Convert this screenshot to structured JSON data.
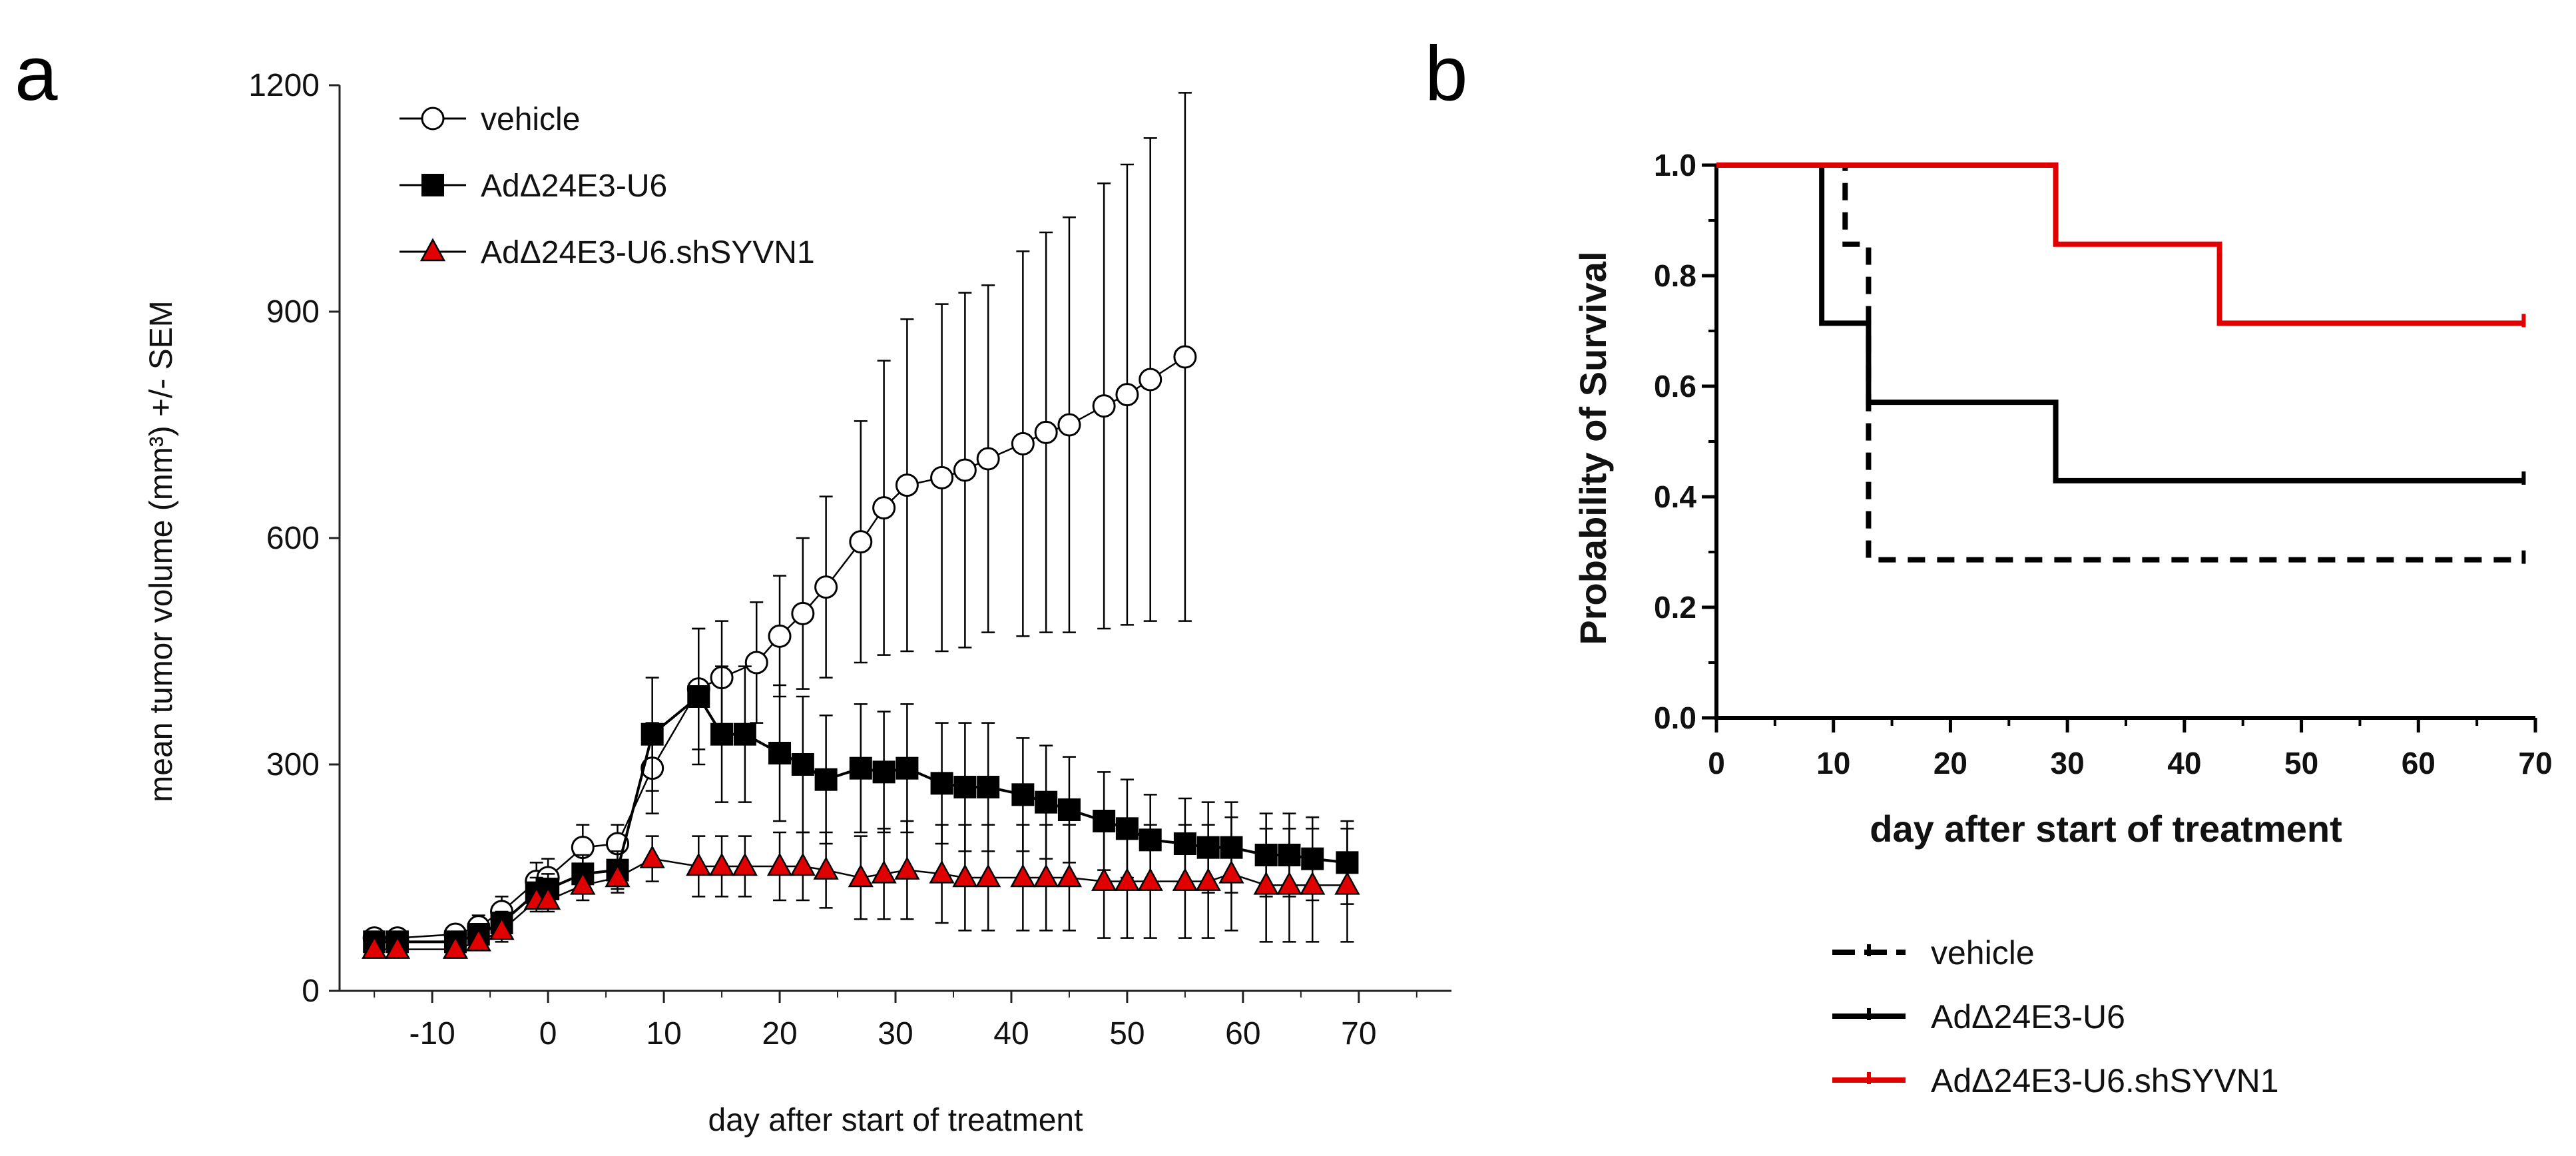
{
  "panels": {
    "a": {
      "letter": "a"
    },
    "b": {
      "letter": "b"
    }
  },
  "chart_data": [
    {
      "panel": "a",
      "type": "line",
      "title": "",
      "xlabel": "day after start of treatment",
      "ylabel": "mean tumor volume (mm³) +/- SEM",
      "xlim": [
        -18,
        78
      ],
      "ylim": [
        0,
        1200
      ],
      "xticks": [
        -10,
        0,
        10,
        20,
        30,
        40,
        50,
        60,
        70
      ],
      "yticks": [
        0,
        300,
        600,
        900,
        1200
      ],
      "grid": false,
      "legend_position": "top-left",
      "series": [
        {
          "name": "vehicle",
          "marker": "circle-open",
          "color": "#000000",
          "fill": "#ffffff",
          "x": [
            -15,
            -13,
            -8,
            -6,
            -4,
            -1,
            0,
            3,
            6,
            9,
            13,
            15,
            18,
            20,
            22,
            24,
            27,
            29,
            31,
            34,
            36,
            38,
            41,
            43,
            45,
            48,
            50,
            52,
            55
          ],
          "y": [
            70,
            70,
            75,
            85,
            105,
            145,
            150,
            190,
            195,
            295,
            400,
            415,
            435,
            470,
            500,
            535,
            595,
            640,
            670,
            680,
            690,
            705,
            725,
            740,
            750,
            775,
            790,
            810,
            840
          ],
          "sem": [
            10,
            10,
            10,
            15,
            20,
            25,
            25,
            30,
            25,
            60,
            80,
            75,
            80,
            80,
            100,
            120,
            160,
            195,
            220,
            230,
            235,
            230,
            255,
            265,
            275,
            295,
            305,
            320,
            350
          ]
        },
        {
          "name": "AdΔ24E3-U6",
          "marker": "square",
          "color": "#000000",
          "fill": "#000000",
          "x": [
            -15,
            -13,
            -8,
            -6,
            -4,
            -1,
            0,
            3,
            6,
            9,
            13,
            15,
            17,
            20,
            22,
            24,
            27,
            29,
            31,
            34,
            36,
            38,
            41,
            43,
            45,
            48,
            50,
            52,
            55,
            57,
            59,
            62,
            64,
            66,
            69
          ],
          "y": [
            65,
            65,
            65,
            75,
            90,
            130,
            135,
            155,
            160,
            340,
            390,
            340,
            340,
            315,
            300,
            280,
            295,
            290,
            295,
            275,
            270,
            270,
            260,
            250,
            240,
            225,
            215,
            200,
            195,
            190,
            190,
            180,
            180,
            175,
            170
          ],
          "sem": [
            10,
            10,
            10,
            10,
            15,
            20,
            20,
            25,
            25,
            75,
            90,
            90,
            90,
            90,
            90,
            85,
            85,
            80,
            85,
            80,
            85,
            85,
            75,
            75,
            70,
            65,
            65,
            60,
            60,
            60,
            60,
            55,
            55,
            55,
            55
          ]
        },
        {
          "name": "AdΔ24E3-U6.shSYVN1",
          "marker": "triangle",
          "color": "#000000",
          "fill": "#e00000",
          "x": [
            -15,
            -13,
            -8,
            -6,
            -4,
            -1,
            0,
            3,
            6,
            9,
            13,
            15,
            17,
            20,
            22,
            24,
            27,
            29,
            31,
            34,
            36,
            38,
            41,
            43,
            45,
            48,
            50,
            52,
            55,
            57,
            59,
            62,
            64,
            66,
            69
          ],
          "y": [
            55,
            55,
            55,
            65,
            80,
            120,
            120,
            140,
            150,
            175,
            165,
            165,
            165,
            165,
            165,
            160,
            150,
            155,
            160,
            155,
            150,
            150,
            150,
            150,
            150,
            145,
            145,
            145,
            145,
            145,
            155,
            140,
            140,
            140,
            140
          ],
          "sem": [
            5,
            5,
            5,
            10,
            15,
            15,
            15,
            20,
            20,
            30,
            40,
            40,
            40,
            45,
            45,
            50,
            55,
            60,
            65,
            65,
            70,
            70,
            70,
            70,
            70,
            75,
            75,
            75,
            75,
            75,
            75,
            75,
            75,
            75,
            75
          ]
        }
      ]
    },
    {
      "panel": "b",
      "type": "line",
      "title": "",
      "xlabel": "day after start of treatment",
      "ylabel": "Probability of Survival",
      "xlim": [
        0,
        70
      ],
      "ylim": [
        0,
        1.0
      ],
      "xticks": [
        0,
        10,
        20,
        30,
        40,
        50,
        60,
        70
      ],
      "yticks": [
        0.0,
        0.2,
        0.4,
        0.6,
        0.8,
        1.0
      ],
      "ytick_labels": [
        "0.0",
        "0.2",
        "0.4",
        "0.6",
        "0.8",
        "1.0"
      ],
      "grid": false,
      "legend_position": "bottom",
      "step": true,
      "series": [
        {
          "name": "vehicle",
          "color": "#000000",
          "dash": true,
          "x": [
            0,
            11,
            13,
            69
          ],
          "y": [
            1.0,
            0.857,
            0.286,
            0.286
          ]
        },
        {
          "name": "AdΔ24E3-U6",
          "color": "#000000",
          "dash": false,
          "x": [
            0,
            9,
            13,
            29,
            69
          ],
          "y": [
            1.0,
            0.714,
            0.571,
            0.429,
            0.429
          ]
        },
        {
          "name": "AdΔ24E3-U6.shSYVN1",
          "color": "#e00000",
          "dash": false,
          "x": [
            0,
            29,
            43,
            69
          ],
          "y": [
            1.0,
            0.857,
            0.714,
            0.714
          ]
        }
      ]
    }
  ]
}
